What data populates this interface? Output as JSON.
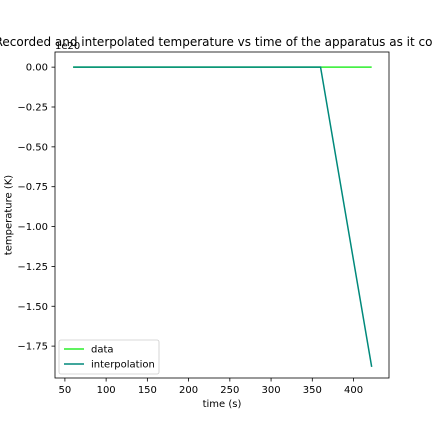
{
  "chart_data": {
    "type": "line",
    "title": "Recorded and interpolated temperature vs time of the apparatus as it cools",
    "xlabel": "time (s)",
    "ylabel": "temperature (K)",
    "offset_label": "1e20",
    "xlim": [
      38,
      443
    ],
    "ylim": [
      -1.95,
      0.095
    ],
    "xticks": [
      50,
      100,
      150,
      200,
      250,
      300,
      350,
      400
    ],
    "xtick_labels": [
      "50",
      "100",
      "150",
      "200",
      "250",
      "300",
      "350",
      "400"
    ],
    "yticks": [
      0.0,
      -0.25,
      -0.5,
      -0.75,
      -1.0,
      -1.25,
      -1.5,
      -1.75
    ],
    "ytick_labels": [
      "0.00",
      "−0.25",
      "−0.50",
      "−0.75",
      "−1.00",
      "−1.25",
      "−1.50",
      "−1.75"
    ],
    "grid": false,
    "legend_position": "lower-left",
    "series": [
      {
        "name": "data",
        "color": "#2bee2b",
        "x": [
          60,
          422
        ],
        "y": [
          0.0,
          0.0
        ]
      },
      {
        "name": "interpolation",
        "color": "#00897b",
        "x": [
          60,
          360,
          422
        ],
        "y": [
          0.0,
          0.0,
          -1.88
        ]
      }
    ]
  }
}
